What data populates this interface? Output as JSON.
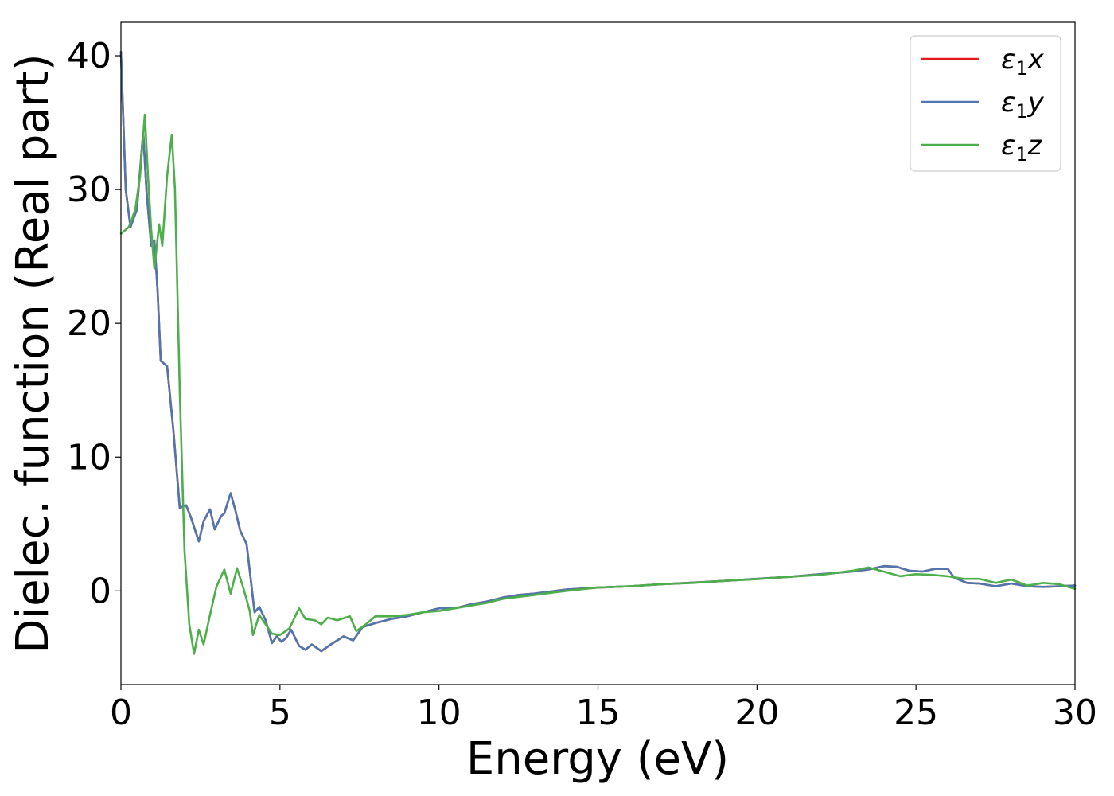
{
  "chart_data": {
    "type": "line",
    "xlabel": "Energy (eV)",
    "ylabel": "Dielec. function (Real part)",
    "xlim": [
      0,
      30
    ],
    "ylim": [
      -7,
      42.5
    ],
    "xticks": [
      "0",
      "5",
      "10",
      "15",
      "20",
      "25",
      "30"
    ],
    "yticks": [
      "0",
      "10",
      "20",
      "30",
      "40"
    ],
    "legend_position": "top-right",
    "grid": false,
    "series": [
      {
        "name": "ε₁x",
        "legend_base": "ε",
        "legend_sub": "1",
        "legend_var": "x",
        "color": "#e41a1c",
        "points": [
          [
            0,
            40.3
          ],
          [
            0.15,
            30
          ],
          [
            0.3,
            27.2
          ],
          [
            0.5,
            28.5
          ],
          [
            0.7,
            34.3
          ],
          [
            0.8,
            30
          ],
          [
            0.95,
            25.8
          ],
          [
            1.05,
            26.2
          ],
          [
            1.15,
            22.5
          ],
          [
            1.25,
            17.2
          ],
          [
            1.45,
            16.8
          ],
          [
            1.65,
            12
          ],
          [
            1.85,
            6.2
          ],
          [
            2.05,
            6.4
          ],
          [
            2.2,
            5.5
          ],
          [
            2.45,
            3.7
          ],
          [
            2.6,
            5.2
          ],
          [
            2.8,
            6.1
          ],
          [
            2.95,
            4.6
          ],
          [
            3.15,
            5.6
          ],
          [
            3.25,
            5.8
          ],
          [
            3.45,
            7.3
          ],
          [
            3.6,
            6
          ],
          [
            3.75,
            4.5
          ],
          [
            3.95,
            3.5
          ],
          [
            4.05,
            1.5
          ],
          [
            4.2,
            -1.6
          ],
          [
            4.35,
            -1.2
          ],
          [
            4.55,
            -2.2
          ],
          [
            4.75,
            -3.9
          ],
          [
            4.9,
            -3.4
          ],
          [
            5.05,
            -3.8
          ],
          [
            5.2,
            -3.5
          ],
          [
            5.35,
            -2.9
          ],
          [
            5.6,
            -4.1
          ],
          [
            5.8,
            -4.4
          ],
          [
            6.0,
            -4.0
          ],
          [
            6.3,
            -4.5
          ],
          [
            6.6,
            -4.0
          ],
          [
            7.0,
            -3.4
          ],
          [
            7.3,
            -3.7
          ],
          [
            7.6,
            -2.7
          ],
          [
            8.0,
            -2.4
          ],
          [
            8.5,
            -2.1
          ],
          [
            9.0,
            -1.9
          ],
          [
            9.5,
            -1.6
          ],
          [
            10,
            -1.3
          ],
          [
            10.5,
            -1.3
          ],
          [
            11,
            -1.0
          ],
          [
            11.5,
            -0.8
          ],
          [
            12,
            -0.5
          ],
          [
            12.5,
            -0.3
          ],
          [
            13,
            -0.2
          ],
          [
            14,
            0.1
          ],
          [
            15,
            0.25
          ],
          [
            16,
            0.35
          ],
          [
            17,
            0.5
          ],
          [
            18,
            0.62
          ],
          [
            19,
            0.75
          ],
          [
            20,
            0.9
          ],
          [
            21,
            1.05
          ],
          [
            22,
            1.25
          ],
          [
            23,
            1.45
          ],
          [
            23.5,
            1.6
          ],
          [
            24,
            1.85
          ],
          [
            24.4,
            1.8
          ],
          [
            24.8,
            1.5
          ],
          [
            25.2,
            1.45
          ],
          [
            25.6,
            1.65
          ],
          [
            26,
            1.65
          ],
          [
            26.2,
            1.0
          ],
          [
            26.6,
            0.6
          ],
          [
            27,
            0.55
          ],
          [
            27.5,
            0.35
          ],
          [
            28,
            0.55
          ],
          [
            28.5,
            0.35
          ],
          [
            29,
            0.3
          ],
          [
            29.5,
            0.35
          ],
          [
            30,
            0.4
          ]
        ]
      },
      {
        "name": "ε₁y",
        "legend_base": "ε",
        "legend_sub": "1",
        "legend_var": "y",
        "color": "#4f77ae",
        "points": [
          [
            0,
            40.3
          ],
          [
            0.15,
            30
          ],
          [
            0.3,
            27.2
          ],
          [
            0.5,
            28.5
          ],
          [
            0.7,
            34.3
          ],
          [
            0.8,
            30
          ],
          [
            0.95,
            25.8
          ],
          [
            1.05,
            26.2
          ],
          [
            1.15,
            22.5
          ],
          [
            1.25,
            17.2
          ],
          [
            1.45,
            16.8
          ],
          [
            1.65,
            12
          ],
          [
            1.85,
            6.2
          ],
          [
            2.05,
            6.4
          ],
          [
            2.2,
            5.5
          ],
          [
            2.45,
            3.7
          ],
          [
            2.6,
            5.2
          ],
          [
            2.8,
            6.1
          ],
          [
            2.95,
            4.6
          ],
          [
            3.15,
            5.6
          ],
          [
            3.25,
            5.8
          ],
          [
            3.45,
            7.3
          ],
          [
            3.6,
            6
          ],
          [
            3.75,
            4.5
          ],
          [
            3.95,
            3.5
          ],
          [
            4.05,
            1.5
          ],
          [
            4.2,
            -1.6
          ],
          [
            4.35,
            -1.2
          ],
          [
            4.55,
            -2.2
          ],
          [
            4.75,
            -3.9
          ],
          [
            4.9,
            -3.4
          ],
          [
            5.05,
            -3.8
          ],
          [
            5.2,
            -3.5
          ],
          [
            5.35,
            -2.9
          ],
          [
            5.6,
            -4.1
          ],
          [
            5.8,
            -4.4
          ],
          [
            6.0,
            -4.0
          ],
          [
            6.3,
            -4.5
          ],
          [
            6.6,
            -4.0
          ],
          [
            7.0,
            -3.4
          ],
          [
            7.3,
            -3.7
          ],
          [
            7.6,
            -2.7
          ],
          [
            8.0,
            -2.4
          ],
          [
            8.5,
            -2.1
          ],
          [
            9.0,
            -1.9
          ],
          [
            9.5,
            -1.6
          ],
          [
            10,
            -1.3
          ],
          [
            10.5,
            -1.3
          ],
          [
            11,
            -1.0
          ],
          [
            11.5,
            -0.8
          ],
          [
            12,
            -0.5
          ],
          [
            12.5,
            -0.3
          ],
          [
            13,
            -0.2
          ],
          [
            14,
            0.1
          ],
          [
            15,
            0.25
          ],
          [
            16,
            0.35
          ],
          [
            17,
            0.5
          ],
          [
            18,
            0.62
          ],
          [
            19,
            0.75
          ],
          [
            20,
            0.9
          ],
          [
            21,
            1.05
          ],
          [
            22,
            1.25
          ],
          [
            23,
            1.45
          ],
          [
            23.5,
            1.6
          ],
          [
            24,
            1.85
          ],
          [
            24.4,
            1.8
          ],
          [
            24.8,
            1.5
          ],
          [
            25.2,
            1.45
          ],
          [
            25.6,
            1.65
          ],
          [
            26,
            1.65
          ],
          [
            26.2,
            1.0
          ],
          [
            26.6,
            0.6
          ],
          [
            27,
            0.55
          ],
          [
            27.5,
            0.35
          ],
          [
            28,
            0.55
          ],
          [
            28.5,
            0.35
          ],
          [
            29,
            0.3
          ],
          [
            29.5,
            0.35
          ],
          [
            30,
            0.4
          ]
        ]
      },
      {
        "name": "ε₁z",
        "legend_base": "ε",
        "legend_sub": "1",
        "legend_var": "z",
        "color": "#4daf4a",
        "points": [
          [
            0,
            26.7
          ],
          [
            0.25,
            27.2
          ],
          [
            0.45,
            28.5
          ],
          [
            0.6,
            31
          ],
          [
            0.75,
            35.6
          ],
          [
            0.85,
            31
          ],
          [
            0.95,
            27
          ],
          [
            1.05,
            24.1
          ],
          [
            1.2,
            27.4
          ],
          [
            1.3,
            25.8
          ],
          [
            1.45,
            31
          ],
          [
            1.6,
            34.1
          ],
          [
            1.7,
            30
          ],
          [
            1.85,
            15
          ],
          [
            2.0,
            3
          ],
          [
            2.15,
            -2.5
          ],
          [
            2.3,
            -4.7
          ],
          [
            2.45,
            -2.9
          ],
          [
            2.6,
            -4.0
          ],
          [
            2.8,
            -1.8
          ],
          [
            3.0,
            0.3
          ],
          [
            3.25,
            1.6
          ],
          [
            3.45,
            -0.2
          ],
          [
            3.65,
            1.7
          ],
          [
            3.85,
            0.2
          ],
          [
            4.05,
            -1.5
          ],
          [
            4.15,
            -3.3
          ],
          [
            4.35,
            -1.8
          ],
          [
            4.55,
            -2.5
          ],
          [
            4.75,
            -3.2
          ],
          [
            5.0,
            -3.3
          ],
          [
            5.3,
            -2.8
          ],
          [
            5.6,
            -1.3
          ],
          [
            5.8,
            -2.1
          ],
          [
            6.1,
            -2.2
          ],
          [
            6.3,
            -2.5
          ],
          [
            6.5,
            -2.0
          ],
          [
            6.8,
            -2.2
          ],
          [
            7.2,
            -1.9
          ],
          [
            7.4,
            -3.0
          ],
          [
            7.7,
            -2.5
          ],
          [
            8.0,
            -1.9
          ],
          [
            8.5,
            -1.9
          ],
          [
            9.0,
            -1.8
          ],
          [
            9.5,
            -1.6
          ],
          [
            10,
            -1.5
          ],
          [
            10.5,
            -1.3
          ],
          [
            11,
            -1.1
          ],
          [
            11.5,
            -0.9
          ],
          [
            12,
            -0.6
          ],
          [
            13,
            -0.3
          ],
          [
            14,
            0.0
          ],
          [
            15,
            0.25
          ],
          [
            16,
            0.35
          ],
          [
            17,
            0.5
          ],
          [
            18,
            0.6
          ],
          [
            19,
            0.75
          ],
          [
            20,
            0.88
          ],
          [
            21,
            1.05
          ],
          [
            22,
            1.2
          ],
          [
            23,
            1.5
          ],
          [
            23.5,
            1.75
          ],
          [
            23.9,
            1.5
          ],
          [
            24.5,
            1.1
          ],
          [
            25,
            1.25
          ],
          [
            25.5,
            1.2
          ],
          [
            26,
            1.1
          ],
          [
            26.5,
            0.9
          ],
          [
            27,
            0.9
          ],
          [
            27.5,
            0.6
          ],
          [
            28,
            0.85
          ],
          [
            28.5,
            0.4
          ],
          [
            29,
            0.6
          ],
          [
            29.5,
            0.5
          ],
          [
            30,
            0.15
          ]
        ]
      }
    ]
  }
}
